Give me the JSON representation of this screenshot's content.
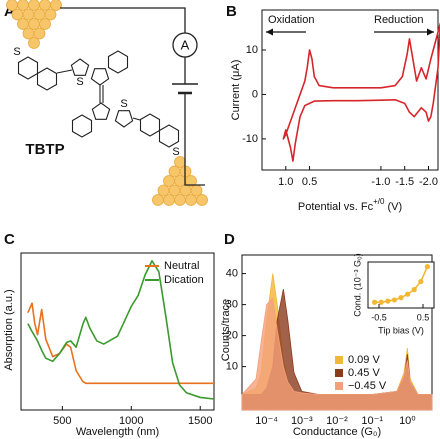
{
  "diagram": {
    "panel_label": "A",
    "meter_label": "A",
    "molecule_name": "TBTP",
    "atom_labels": [
      "S",
      "S",
      "S",
      "S"
    ]
  },
  "chart_data": [
    {
      "type": "line",
      "panel_label": "B",
      "y_label": "Current (μA)",
      "x_label": "Potential vs. Fc",
      "x_label_sup": "+/0",
      "x_label_unit": "(V)",
      "annotations": [
        "Oxidation",
        "Reduction"
      ],
      "x": [
        0,
        0.3,
        0.4,
        0.45,
        0.5,
        0.55,
        0.6,
        0.7,
        0.8,
        0.9,
        1.0,
        1.05,
        1.0,
        0.95,
        0.9,
        0.85,
        0.8,
        0.7,
        0.6,
        0.4,
        0,
        -0.5,
        -1.0,
        -1.3,
        -1.5,
        -1.6,
        -1.7,
        -1.85,
        -1.95,
        -2.0,
        -2.05,
        -2.1,
        -2.2,
        -2.25,
        -2.15,
        -2.05,
        -1.95,
        -1.85,
        -1.75,
        -1.6,
        -1.55,
        -1.45,
        -1.3,
        -1.0,
        -0.5,
        0
      ],
      "series": [
        {
          "color": "#d7262b",
          "values": [
            1.5,
            2,
            4,
            8,
            10,
            6,
            3,
            0,
            -3,
            -6,
            -9,
            -10,
            -8,
            -10,
            -12,
            -15,
            -11,
            -5,
            -2.5,
            -1.5,
            -1.4,
            -1.4,
            -1.3,
            -1.2,
            -2,
            -4,
            -5,
            -3,
            -4,
            -6,
            -5,
            -2,
            6,
            16,
            12,
            8,
            3.5,
            6,
            3,
            12.5,
            9,
            4,
            2,
            1.5,
            1.5,
            1.5
          ]
        }
      ],
      "xlim": [
        1.5,
        -2.2
      ],
      "xticks": [
        {
          "value": 1,
          "label": "1.0"
        },
        0.5,
        {
          "value": -1,
          "label": "-1.0"
        },
        -1.5,
        {
          "value": -2,
          "label": "-2.0"
        }
      ],
      "ylim": [
        -17,
        19
      ],
      "yticks": [
        -10,
        0,
        10
      ]
    },
    {
      "type": "line",
      "panel_label": "C",
      "x_label": "Wavelength (nm)",
      "y_label": "Absorption (a.u.)",
      "x": [
        250,
        280,
        300,
        320,
        350,
        380,
        430,
        480,
        530,
        560,
        600,
        650,
        670,
        700,
        750,
        800,
        900,
        1000,
        1050,
        1100,
        1150,
        1200,
        1250,
        1300,
        1350,
        1400,
        1500,
        1600
      ],
      "series": [
        {
          "name": "Neutral",
          "color": "#e8711e",
          "values": [
            0.62,
            0.68,
            0.55,
            0.48,
            0.64,
            0.45,
            0.34,
            0.36,
            0.42,
            0.4,
            0.25,
            0.18,
            0.17,
            0.17,
            0.17,
            0.17,
            0.17,
            0.17,
            0.17,
            0.17,
            0.17,
            0.17,
            0.17,
            0.17,
            0.17,
            0.17,
            0.17,
            0.17
          ]
        },
        {
          "name": "Dication",
          "color": "#3a9a2e",
          "values": [
            0.55,
            0.5,
            0.47,
            0.44,
            0.38,
            0.33,
            0.31,
            0.36,
            0.43,
            0.44,
            0.4,
            0.55,
            0.59,
            0.52,
            0.44,
            0.42,
            0.47,
            0.66,
            0.73,
            0.86,
            0.95,
            0.88,
            0.6,
            0.3,
            0.16,
            0.11,
            0.08,
            0.07
          ]
        }
      ],
      "xlim": [
        200,
        1600
      ],
      "xticks": [
        500,
        1000,
        1500
      ],
      "ylim": [
        0,
        1
      ]
    },
    {
      "type": "area",
      "panel_label": "D",
      "x_label": "Conductance (G₀)",
      "y_label": "Counts/trace",
      "xscale": "log",
      "x": [
        2e-05,
        5e-05,
        7e-05,
        0.0001,
        0.00015,
        0.0002,
        0.0003,
        0.0004,
        0.0006,
        0.001,
        0.003,
        0.01,
        0.1,
        0.5,
        0.8,
        1,
        1.2,
        2,
        5
      ],
      "series": [
        {
          "name": "0.09 V",
          "color": "#f2b733",
          "values": [
            1,
            3,
            8,
            25,
            40,
            30,
            12,
            5,
            2,
            1,
            1,
            1,
            1,
            2,
            8,
            16,
            6,
            1,
            1
          ]
        },
        {
          "name": "0.45 V",
          "color": "#8b3a1c",
          "values": [
            1,
            1,
            1,
            3,
            10,
            25,
            35,
            25,
            8,
            2,
            1,
            1,
            1,
            2,
            6,
            14,
            5,
            1,
            1
          ]
        },
        {
          "name": "−0.45 V",
          "color": "#f4a07c",
          "values": [
            1,
            6,
            18,
            30,
            32,
            22,
            10,
            5,
            2,
            1.5,
            1,
            1,
            1,
            2,
            7,
            12,
            5,
            1,
            1
          ]
        }
      ],
      "xlim": [
        2e-05,
        5
      ],
      "xticks": [
        {
          "value": 0.0001,
          "label": "10⁻⁴"
        },
        {
          "value": 0.001,
          "label": "10⁻³"
        },
        {
          "value": 0.01,
          "label": "10⁻²"
        },
        {
          "value": 0.1,
          "label": "10⁻¹"
        },
        {
          "value": 1,
          "label": "10⁰"
        }
      ],
      "ylim": [
        -4,
        46
      ],
      "yticks": [
        10,
        20,
        30,
        40
      ]
    },
    {
      "type": "line",
      "markers": true,
      "x_label": "Tip bias (V)",
      "y_label": "Cond. (10⁻³ G₀)",
      "x": [
        -0.6,
        -0.45,
        -0.3,
        -0.15,
        0,
        0.15,
        0.3,
        0.45,
        0.6
      ],
      "series": [
        {
          "color": "#f2b733",
          "values": [
            0.1,
            0.1,
            0.11,
            0.12,
            0.14,
            0.17,
            0.21,
            0.28,
            0.41
          ]
        }
      ],
      "xlim": [
        -0.75,
        0.75
      ],
      "xticks": [
        -0.5,
        0.5
      ],
      "ylim": [
        0.05,
        0.45
      ]
    }
  ]
}
